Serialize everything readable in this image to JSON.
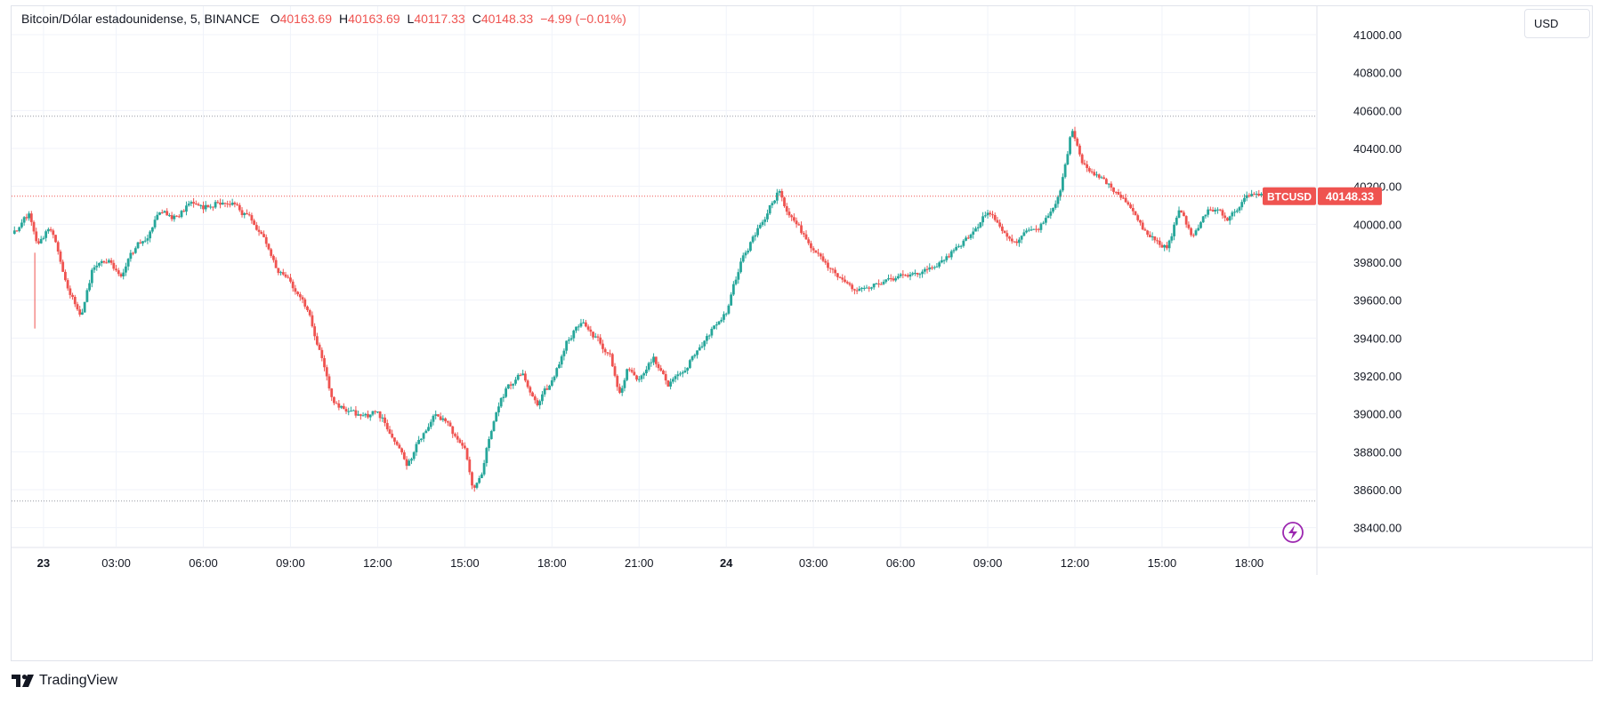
{
  "legend": {
    "symbol": "Bitcoin/Dólar estadounidense, 5, BINANCE",
    "o_label": "O",
    "o_value": "40163.69",
    "h_label": "H",
    "h_value": "40163.69",
    "l_label": "L",
    "l_value": "40117.33",
    "c_label": "C",
    "c_value": "40148.33",
    "change": "−4.99 (−0.01%)"
  },
  "currency_button": "USD",
  "price_tag": {
    "symbol": "BTCUSD",
    "price": "40148.33"
  },
  "footer": {
    "brand": "TradingView"
  },
  "colors": {
    "up": "#26a69a",
    "down": "#ef5350",
    "grid": "#f0f3fa",
    "text": "#131722",
    "accent_icon": "#9c27b0"
  },
  "icons": [
    "tradingview-logo-icon",
    "lightning-icon"
  ],
  "chart_data": {
    "type": "candlestick",
    "interval": "5 minutes",
    "y_ticks": [
      "41000.00",
      "40800.00",
      "40600.00",
      "40400.00",
      "40200.00",
      "40000.00",
      "39800.00",
      "39600.00",
      "39400.00",
      "39200.00",
      "39000.00",
      "38800.00",
      "38600.00",
      "38400.00"
    ],
    "x_ticks": [
      {
        "t": 0.5,
        "label": "23",
        "bold": true
      },
      {
        "t": 3,
        "label": "03:00"
      },
      {
        "t": 6,
        "label": "06:00"
      },
      {
        "t": 9,
        "label": "09:00"
      },
      {
        "t": 12,
        "label": "12:00"
      },
      {
        "t": 15,
        "label": "15:00"
      },
      {
        "t": 18,
        "label": "18:00"
      },
      {
        "t": 21,
        "label": "21:00"
      },
      {
        "t": 24,
        "label": "24",
        "bold": true
      },
      {
        "t": 27,
        "label": "03:00"
      },
      {
        "t": 30,
        "label": "06:00"
      },
      {
        "t": 33,
        "label": "09:00"
      },
      {
        "t": 36,
        "label": "12:00"
      },
      {
        "t": 39,
        "label": "15:00"
      },
      {
        "t": 42,
        "label": "18:00"
      }
    ],
    "x_range": [
      -0.6,
      44.3
    ],
    "y_range": [
      38300,
      41150
    ],
    "last_price": 40148.33,
    "dotted_high": 40570,
    "dotted_low": 38540,
    "path": [
      [
        -0.5,
        39950
      ],
      [
        0,
        40040
      ],
      [
        0.3,
        39850
      ],
      [
        0.7,
        39980
      ],
      [
        1.0,
        39850
      ],
      [
        1.3,
        39700
      ],
      [
        1.8,
        39550
      ],
      [
        2.2,
        39780
      ],
      [
        2.8,
        39850
      ],
      [
        3.2,
        39750
      ],
      [
        3.5,
        39880
      ],
      [
        4.0,
        39950
      ],
      [
        4.5,
        40080
      ],
      [
        5.0,
        40050
      ],
      [
        5.5,
        40120
      ],
      [
        6.0,
        40080
      ],
      [
        6.5,
        40140
      ],
      [
        7.0,
        40110
      ],
      [
        7.5,
        40040
      ],
      [
        8.0,
        39980
      ],
      [
        8.5,
        39800
      ],
      [
        9.0,
        39700
      ],
      [
        9.5,
        39550
      ],
      [
        10.0,
        39350
      ],
      [
        10.5,
        39050
      ],
      [
        11.0,
        39000
      ],
      [
        11.5,
        38950
      ],
      [
        12.0,
        39000
      ],
      [
        12.5,
        38900
      ],
      [
        13.0,
        38720
      ],
      [
        13.5,
        38880
      ],
      [
        14.0,
        39000
      ],
      [
        14.5,
        38950
      ],
      [
        15.0,
        38800
      ],
      [
        15.3,
        38600
      ],
      [
        15.6,
        38720
      ],
      [
        16.0,
        39000
      ],
      [
        16.5,
        39150
      ],
      [
        17.0,
        39200
      ],
      [
        17.5,
        39050
      ],
      [
        18.0,
        39150
      ],
      [
        18.5,
        39380
      ],
      [
        19.0,
        39500
      ],
      [
        19.5,
        39420
      ],
      [
        20.0,
        39300
      ],
      [
        20.3,
        39100
      ],
      [
        20.6,
        39250
      ],
      [
        21.0,
        39200
      ],
      [
        21.5,
        39320
      ],
      [
        22.0,
        39150
      ],
      [
        22.5,
        39200
      ],
      [
        23.0,
        39350
      ],
      [
        23.5,
        39450
      ],
      [
        24.0,
        39550
      ],
      [
        24.5,
        39800
      ],
      [
        25.0,
        39950
      ],
      [
        25.5,
        40100
      ],
      [
        25.8,
        40200
      ],
      [
        26.2,
        40020
      ],
      [
        26.8,
        39900
      ],
      [
        27.5,
        39800
      ],
      [
        28.0,
        39720
      ],
      [
        28.5,
        39650
      ],
      [
        29.0,
        39650
      ],
      [
        29.8,
        39720
      ],
      [
        30.5,
        39770
      ],
      [
        31.2,
        39800
      ],
      [
        32.0,
        39900
      ],
      [
        32.6,
        39980
      ],
      [
        33.0,
        40070
      ],
      [
        33.5,
        39980
      ],
      [
        34.0,
        39950
      ],
      [
        34.5,
        40020
      ],
      [
        35.0,
        40040
      ],
      [
        35.5,
        40150
      ],
      [
        35.9,
        40500
      ],
      [
        36.2,
        40330
      ],
      [
        36.8,
        40250
      ],
      [
        37.3,
        40200
      ],
      [
        37.8,
        40130
      ],
      [
        38.5,
        39960
      ],
      [
        39.2,
        39880
      ],
      [
        39.6,
        40080
      ],
      [
        40.0,
        39920
      ],
      [
        40.6,
        40060
      ],
      [
        41.3,
        40020
      ],
      [
        41.8,
        40120
      ],
      [
        42.3,
        40160
      ],
      [
        42.8,
        40148
      ]
    ]
  }
}
